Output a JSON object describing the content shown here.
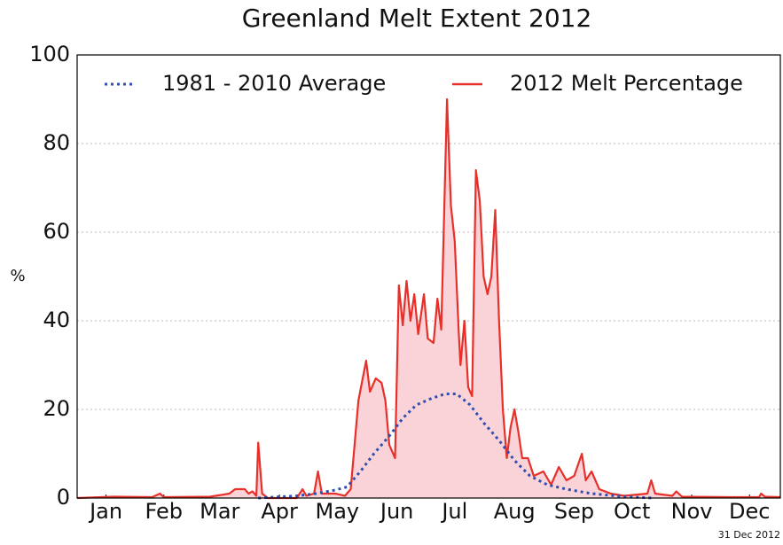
{
  "chart_data": {
    "type": "line",
    "title": "Greenland Melt Extent 2012",
    "y_label": "%",
    "annotation": "31 Dec 2012",
    "xlim": [
      1,
      366
    ],
    "ylim": [
      0,
      100
    ],
    "yticks": [
      0,
      20,
      40,
      60,
      80,
      100
    ],
    "xticks": [
      {
        "value": 16,
        "label": "Jan"
      },
      {
        "value": 46,
        "label": "Feb"
      },
      {
        "value": 75,
        "label": "Mar"
      },
      {
        "value": 106,
        "label": "Apr"
      },
      {
        "value": 136,
        "label": "May"
      },
      {
        "value": 167,
        "label": "Jun"
      },
      {
        "value": 197,
        "label": "Jul"
      },
      {
        "value": 228,
        "label": "Aug"
      },
      {
        "value": 259,
        "label": "Sep"
      },
      {
        "value": 289,
        "label": "Oct"
      },
      {
        "value": 320,
        "label": "Nov"
      },
      {
        "value": 350,
        "label": "Dec"
      }
    ],
    "grid": true,
    "legend": "top",
    "series": [
      {
        "name": "1981 - 2010 Average",
        "color": "#2f4fb0",
        "style": "dotted",
        "x": [
          95,
          115,
          125,
          135,
          141,
          148,
          155,
          163,
          170,
          177,
          185,
          192,
          198,
          205,
          212,
          220,
          228,
          236,
          245,
          255,
          268,
          285,
          300
        ],
        "values": [
          0,
          0.5,
          1,
          1.8,
          2.5,
          6,
          10,
          14,
          18,
          21,
          22.5,
          23.5,
          23.5,
          21,
          17,
          13,
          8.5,
          5,
          3,
          2,
          1,
          0.3,
          0
        ]
      },
      {
        "name": "2012 Melt Percentage",
        "color": "#e8302a",
        "style": "solid",
        "fill": "#f9d3d7",
        "x": [
          1,
          20,
          40,
          44,
          46,
          70,
          80,
          83,
          88,
          90,
          92,
          94,
          95,
          97,
          100,
          115,
          118,
          120,
          124,
          126,
          128,
          135,
          140,
          143,
          147,
          151,
          153,
          156,
          159,
          161,
          163,
          166,
          168,
          170,
          172,
          174,
          176,
          178,
          181,
          183,
          186,
          188,
          190,
          193,
          195,
          197,
          199,
          200,
          202,
          204,
          206,
          208,
          210,
          212,
          214,
          216,
          218,
          220,
          222,
          224,
          226,
          228,
          230,
          232,
          235,
          238,
          243,
          247,
          251,
          255,
          259,
          263,
          265,
          268,
          272,
          278,
          285,
          297,
          299,
          301,
          310,
          312,
          315,
          340,
          355,
          356,
          358,
          366
        ],
        "values": [
          0,
          0.3,
          0.2,
          1,
          0.2,
          0.3,
          1,
          2,
          2,
          1,
          1.5,
          0.5,
          12.5,
          1,
          0,
          0,
          2,
          0.5,
          1,
          6,
          1,
          1,
          0.5,
          2,
          22,
          31,
          24,
          27,
          26,
          22,
          12,
          9,
          48,
          39,
          49,
          40,
          46,
          37,
          46,
          36,
          35,
          45,
          38,
          90,
          66,
          58,
          38,
          30,
          40,
          25,
          23,
          74,
          67,
          50,
          46,
          50,
          65,
          40,
          20,
          9,
          16,
          20,
          15,
          9,
          9,
          5,
          6,
          3,
          7,
          4,
          5,
          10,
          4,
          6,
          2,
          1,
          0.5,
          1,
          4,
          1,
          0.5,
          1.5,
          0.3,
          0.2,
          0.2,
          1,
          0.3,
          0.2
        ]
      }
    ]
  }
}
